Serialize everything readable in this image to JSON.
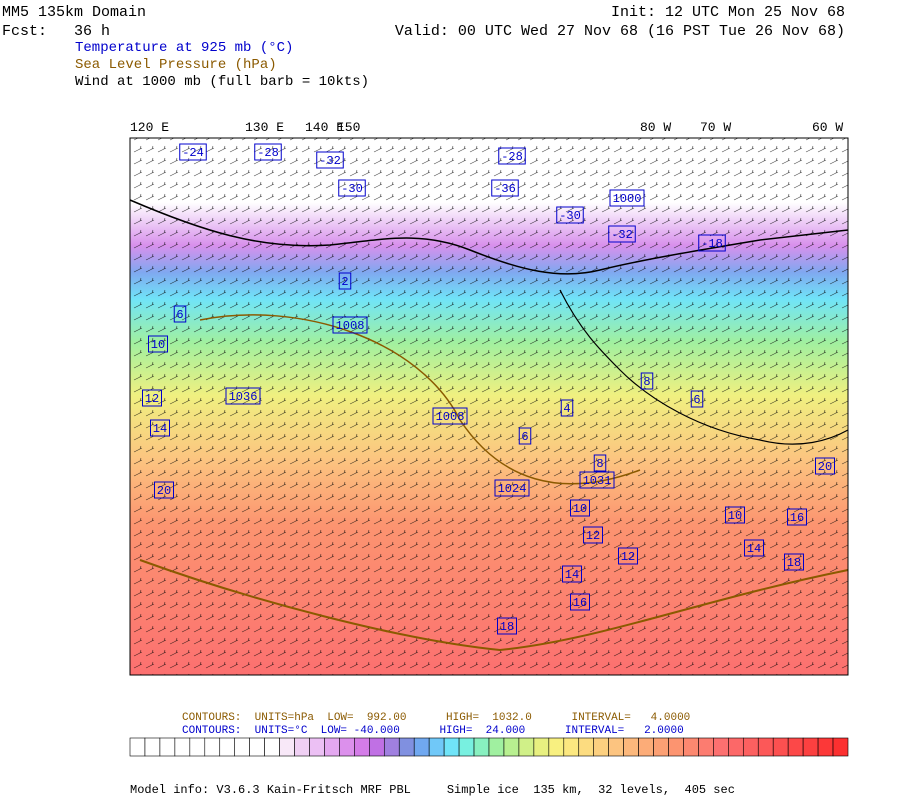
{
  "header": {
    "domain": "MM5 135km Domain",
    "forecast": "Fcst:   36 h",
    "init": "Init: 12 UTC Mon 25 Nov 68",
    "valid": "Valid: 00 UTC Wed 27 Nov 68 (16 PST Tue 26 Nov 68)",
    "fields": [
      {
        "text": "Temperature at 925 mb (°C)",
        "color": "#0000cc"
      },
      {
        "text": "Sea Level Pressure (hPa)",
        "color": "#8b5a00"
      },
      {
        "text": "Wind at 1000 mb (full barb = 10kts)",
        "color": "#000000"
      }
    ]
  },
  "longitudes": [
    "120 E",
    "130 E",
    "140 E",
    "150",
    "80 W",
    "70 W",
    "60 W"
  ],
  "map_labels": [
    "-24",
    "-28",
    "-32",
    "-28",
    "-30",
    "-36",
    "-30",
    "-32",
    "-18",
    "2",
    "6",
    "10",
    "1008",
    "1036",
    "12",
    "14",
    "1008",
    "4",
    "6",
    "8",
    "20",
    "1024",
    "1031",
    "8",
    "10",
    "12",
    "12",
    "14",
    "16",
    "18",
    "10",
    "14",
    "16",
    "18",
    "20",
    "6",
    "1000"
  ],
  "contours": [
    {
      "text": "CONTOURS:  UNITS=hPa  LOW=  992.00      HIGH=  1032.0      INTERVAL=   4.0000",
      "color": "#8b5a00"
    },
    {
      "text": "CONTOURS:  UNITS=°C  LOW= -40.000      HIGH=  24.000      INTERVAL=   2.0000",
      "color": "#0000cc"
    }
  ],
  "colorbar": [
    "#ffffff",
    "#ffffff",
    "#ffffff",
    "#ffffff",
    "#ffffff",
    "#ffffff",
    "#ffffff",
    "#ffffff",
    "#ffffff",
    "#ffffff",
    "#f8e8f8",
    "#f0d0f4",
    "#ecc0f4",
    "#e4a8f0",
    "#dc90ec",
    "#d47ce8",
    "#c070e4",
    "#a080e0",
    "#8090e0",
    "#70a8f0",
    "#70c8f8",
    "#70e4f8",
    "#78f0e0",
    "#88f0c0",
    "#a0f0a0",
    "#b8f090",
    "#d0f088",
    "#e8f080",
    "#f8f080",
    "#fce880",
    "#fcdc80",
    "#fcd080",
    "#fcc480",
    "#fcb87c",
    "#fcac78",
    "#fca074",
    "#fc9470",
    "#fc8870",
    "#fc7c70",
    "#fc7070",
    "#fc6868",
    "#fc6060",
    "#fc5858",
    "#fc5050",
    "#fc4848",
    "#fc4040",
    "#fc3838",
    "#fc3030"
  ],
  "footer": "Model info: V3.6.3 Kain-Fritsch MRF PBL     Simple ice  135 km,  32 levels,  405 sec"
}
